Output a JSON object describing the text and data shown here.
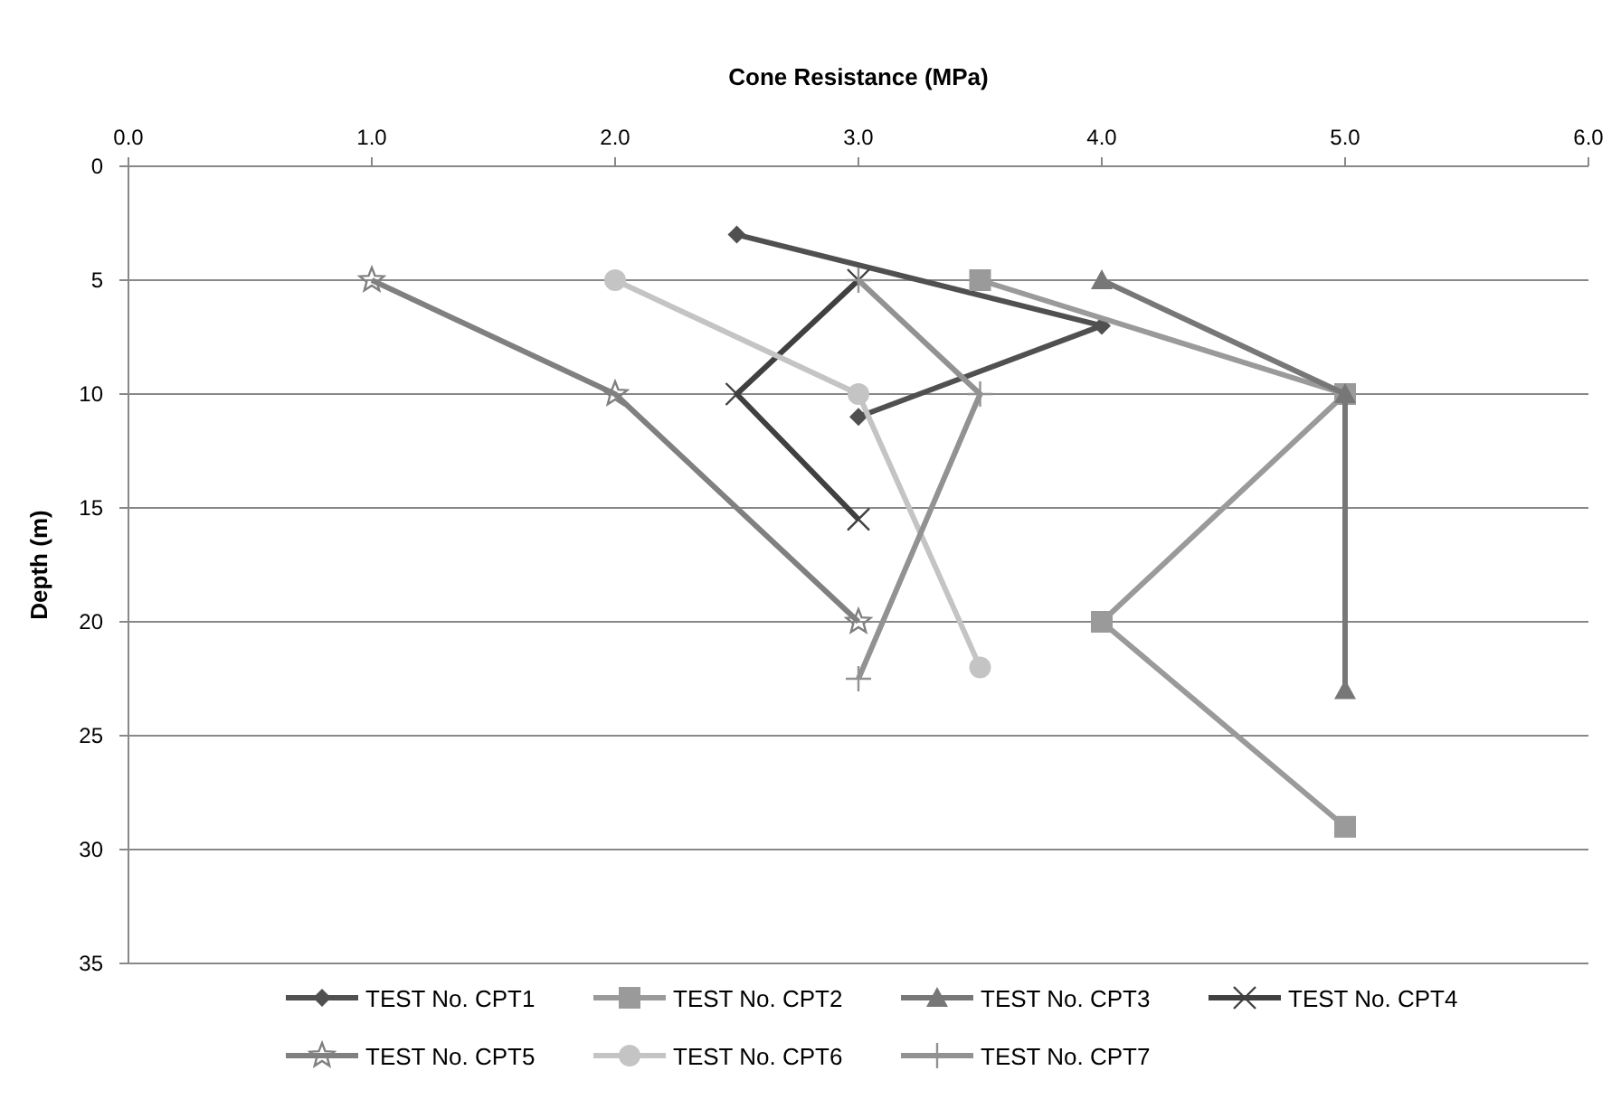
{
  "chart_data": {
    "type": "line",
    "xlabel": "Cone Resistance (MPa)",
    "ylabel": "Depth (m)",
    "xlim": [
      0,
      6
    ],
    "xticks": [
      {
        "value": 0,
        "label": "0.0"
      },
      {
        "value": 1,
        "label": "1.0"
      },
      {
        "value": 2,
        "label": "2.0"
      },
      {
        "value": 3,
        "label": "3.0"
      },
      {
        "value": 4,
        "label": "4.0"
      },
      {
        "value": 5,
        "label": "5.0"
      },
      {
        "value": 6,
        "label": "6.0"
      }
    ],
    "ylim": [
      35,
      0
    ],
    "yticks": [
      0,
      5,
      10,
      15,
      20,
      25,
      30,
      35
    ],
    "grid": "y",
    "legend": "bottom",
    "series": [
      {
        "name": "TEST No. CPT1",
        "color": "#505050",
        "marker": "diamond",
        "x": [
          2.5,
          4,
          3
        ],
        "values": [
          3,
          7,
          11
        ]
      },
      {
        "name": "TEST No. CPT2",
        "color": "#9a9a9a",
        "marker": "square",
        "x": [
          3.5,
          5,
          4,
          5
        ],
        "values": [
          5,
          10,
          20,
          29
        ]
      },
      {
        "name": "TEST No. CPT3",
        "color": "#777777",
        "marker": "triangle",
        "x": [
          4,
          5,
          5
        ],
        "values": [
          5,
          10,
          23
        ]
      },
      {
        "name": "TEST No. CPT4",
        "color": "#404040",
        "marker": "x",
        "x": [
          3,
          2.5,
          3
        ],
        "values": [
          5,
          10,
          15.5
        ]
      },
      {
        "name": "TEST No. CPT5",
        "color": "#808080",
        "marker": "star",
        "x": [
          1,
          2,
          3
        ],
        "values": [
          5,
          10,
          20
        ]
      },
      {
        "name": "TEST No. CPT6",
        "color": "#c4c4c4",
        "marker": "circle",
        "x": [
          2,
          3,
          3.5
        ],
        "values": [
          5,
          10,
          22
        ]
      },
      {
        "name": "TEST No. CPT7",
        "color": "#929292",
        "marker": "cross",
        "x": [
          3,
          3.5,
          3
        ],
        "values": [
          5,
          10,
          22.5
        ]
      }
    ]
  }
}
